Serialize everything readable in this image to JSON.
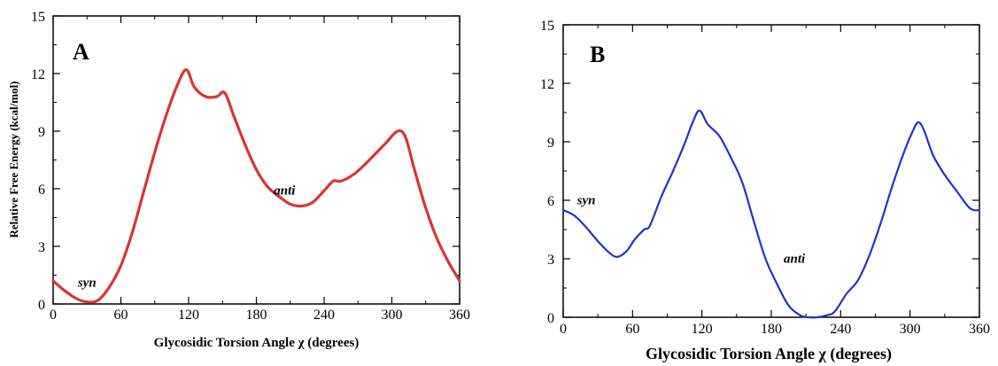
{
  "chart_data": [
    {
      "type": "line",
      "panel_label": "A",
      "xlabel": "Glycosidic Torsion Angle χ (degrees)",
      "ylabel": "Relative Free Energy (kcal/mol)",
      "xlim": [
        0,
        360
      ],
      "ylim": [
        0,
        15
      ],
      "xticks": [
        "0",
        "60",
        "120",
        "180",
        "240",
        "300",
        "360"
      ],
      "yticks": [
        "0",
        "3",
        "6",
        "9",
        "12",
        "15"
      ],
      "grid": false,
      "color": "#d93434",
      "annotations": [
        {
          "text": "syn",
          "x": 30,
          "y": 0.9
        },
        {
          "text": "anti",
          "x": 205,
          "y": 5.7
        }
      ],
      "series": [
        {
          "x": [
            0,
            10,
            20,
            30,
            40,
            50,
            60,
            70,
            80,
            90,
            100,
            110,
            118,
            125,
            135,
            145,
            152,
            160,
            170,
            180,
            190,
            200,
            210,
            220,
            230,
            240,
            248,
            255,
            265,
            275,
            285,
            295,
            305,
            312,
            320,
            330,
            340,
            350,
            360
          ],
          "y": [
            1.2,
            0.7,
            0.3,
            0.1,
            0.2,
            0.9,
            2.0,
            3.7,
            5.8,
            7.9,
            9.8,
            11.4,
            12.2,
            11.3,
            10.8,
            10.8,
            11.0,
            9.8,
            8.3,
            7.0,
            6.1,
            5.6,
            5.2,
            5.1,
            5.3,
            5.9,
            6.4,
            6.4,
            6.7,
            7.2,
            7.8,
            8.4,
            9.0,
            8.7,
            7.0,
            5.0,
            3.4,
            2.2,
            1.2
          ]
        }
      ]
    },
    {
      "type": "line",
      "panel_label": "B",
      "xlabel": "Glycosidic Torsion Angle χ (degrees)",
      "ylabel": "",
      "xlim": [
        0,
        360
      ],
      "ylim": [
        0,
        15
      ],
      "xticks": [
        "0",
        "60",
        "120",
        "180",
        "240",
        "300",
        "360"
      ],
      "yticks": [
        "0",
        "3",
        "6",
        "9",
        "12",
        "15"
      ],
      "grid": false,
      "color": "#2233c8",
      "annotations": [
        {
          "text": "syn",
          "x": 20,
          "y": 5.8
        },
        {
          "text": "anti",
          "x": 200,
          "y": 2.8
        }
      ],
      "series": [
        {
          "x": [
            0,
            10,
            20,
            30,
            40,
            47,
            55,
            62,
            70,
            75,
            85,
            95,
            105,
            112,
            118,
            125,
            135,
            145,
            155,
            165,
            175,
            185,
            195,
            205,
            212,
            220,
            228,
            235,
            245,
            255,
            265,
            275,
            285,
            295,
            302,
            307,
            312,
            320,
            330,
            340,
            350,
            355,
            360
          ],
          "y": [
            5.5,
            5.2,
            4.6,
            3.9,
            3.3,
            3.1,
            3.4,
            4.0,
            4.5,
            4.7,
            6.2,
            7.5,
            8.9,
            10.0,
            10.6,
            9.9,
            9.3,
            8.2,
            6.9,
            4.9,
            3.0,
            1.7,
            0.6,
            0.1,
            0.0,
            0.0,
            0.1,
            0.3,
            1.2,
            1.9,
            3.2,
            4.9,
            6.8,
            8.5,
            9.5,
            10.0,
            9.6,
            8.3,
            7.3,
            6.5,
            5.7,
            5.5,
            5.5
          ]
        }
      ]
    }
  ]
}
